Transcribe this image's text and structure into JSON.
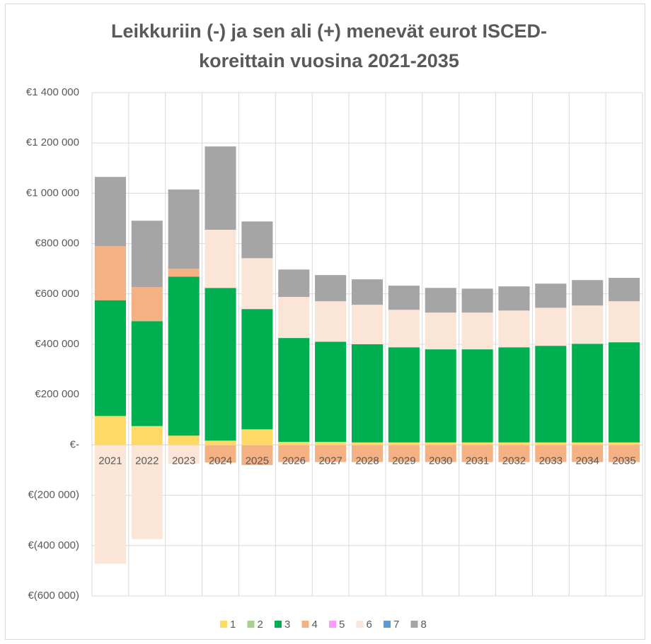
{
  "chart_data": {
    "type": "stacked_bar",
    "title": [
      "Leikkuriin (-) ja sen ali (+) menevät eurot ISCED-",
      "koreittain vuosina 2021-2035"
    ],
    "categories": [
      "2021",
      "2022",
      "2023",
      "2024",
      "2025",
      "2026",
      "2027",
      "2028",
      "2029",
      "2030",
      "2031",
      "2032",
      "2033",
      "2034",
      "2035"
    ],
    "series": [
      {
        "name": "1",
        "color": "#ffd966",
        "values": [
          115000,
          75000,
          37000,
          17000,
          62000,
          12000,
          12000,
          10000,
          10000,
          10000,
          10000,
          10000,
          10000,
          10000,
          10000
        ]
      },
      {
        "name": "2",
        "color": "#a9d18e",
        "values": [
          0,
          0,
          0,
          0,
          0,
          0,
          0,
          0,
          0,
          0,
          0,
          0,
          0,
          0,
          0
        ]
      },
      {
        "name": "3",
        "color": "#00b050",
        "values": [
          460000,
          417000,
          632000,
          607000,
          478000,
          413000,
          398000,
          390000,
          378000,
          370000,
          370000,
          378000,
          384000,
          392000,
          398000
        ]
      },
      {
        "name": "4",
        "color": "#f4b183",
        "values": [
          215000,
          135000,
          31000,
          -70000,
          -80000,
          -68000,
          -68000,
          -68000,
          -68000,
          -68000,
          -68000,
          -68000,
          -68000,
          -68000,
          -68000
        ]
      },
      {
        "name": "5",
        "color": "#ff99ff",
        "values": [
          0,
          0,
          0,
          0,
          0,
          0,
          0,
          0,
          0,
          0,
          0,
          0,
          0,
          0,
          0
        ]
      },
      {
        "name": "6",
        "color": "#fbe5d6",
        "values": [
          -472000,
          -374000,
          -75000,
          231000,
          202000,
          163000,
          161000,
          157000,
          149000,
          146000,
          146000,
          146000,
          151000,
          152000,
          163000
        ]
      },
      {
        "name": "7",
        "color": "#5b9bd5",
        "values": [
          0,
          0,
          0,
          0,
          0,
          0,
          0,
          0,
          0,
          0,
          0,
          0,
          0,
          0,
          0
        ]
      },
      {
        "name": "8",
        "color": "#a5a5a5",
        "values": [
          275000,
          264000,
          315000,
          331000,
          146000,
          109000,
          104000,
          101000,
          96000,
          98000,
          95000,
          96000,
          96000,
          101000,
          93000
        ]
      }
    ],
    "ylim": [
      -600000,
      1400000
    ],
    "yticks": [
      {
        "value": -600000,
        "label": "€(600 000)"
      },
      {
        "value": -400000,
        "label": "€(400 000)"
      },
      {
        "value": -200000,
        "label": "€(200 000)"
      },
      {
        "value": 0,
        "label": "€-"
      },
      {
        "value": 200000,
        "label": "€200 000"
      },
      {
        "value": 400000,
        "label": "€400 000"
      },
      {
        "value": 600000,
        "label": "€600 000"
      },
      {
        "value": 800000,
        "label": "€800 000"
      },
      {
        "value": 1000000,
        "label": "€1 000 000"
      },
      {
        "value": 1200000,
        "label": "€1 200 000"
      },
      {
        "value": 1400000,
        "label": "€1 400 000"
      }
    ],
    "grid": true,
    "legend": "bottom"
  }
}
